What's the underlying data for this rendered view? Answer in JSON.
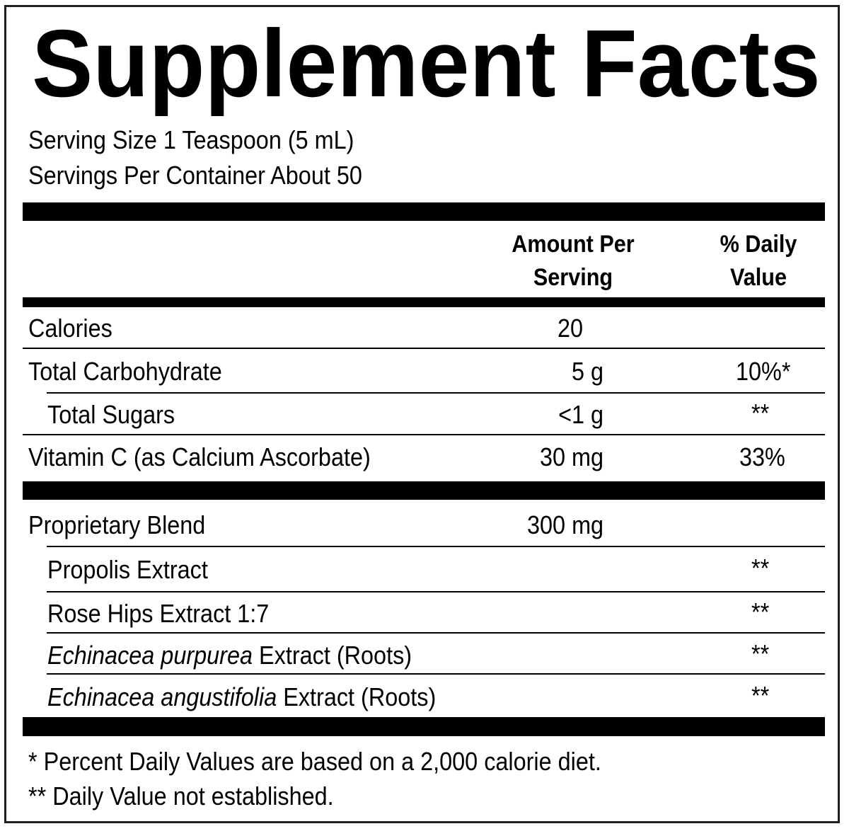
{
  "title": "Supplement Facts",
  "serving_size": "Serving Size 1 Teaspoon (5 mL)",
  "servings_per_container": "Servings Per Container About 50",
  "header": {
    "amount_line1": "Amount Per",
    "amount_line2": "Serving",
    "dv_line1": "% Daily",
    "dv_line2": "Value"
  },
  "nutrients": [
    {
      "name": "Calories",
      "amount": "20",
      "dv": ""
    },
    {
      "name": "Total Carbohydrate",
      "amount": "5 g",
      "dv": "10%*"
    },
    {
      "name": "Total Sugars",
      "amount": "<1 g",
      "dv": "**"
    },
    {
      "name": "Vitamin C (as Calcium Ascorbate)",
      "amount": "30 mg",
      "dv": "33%"
    }
  ],
  "blend": {
    "name": "Proprietary Blend",
    "amount": "300 mg",
    "ingredients": [
      {
        "italic": "",
        "name": "Propolis Extract",
        "dv": "**"
      },
      {
        "italic": "",
        "name": "Rose Hips Extract 1:7",
        "dv": "**"
      },
      {
        "italic": "Echinacea purpurea",
        "name": " Extract (Roots)",
        "dv": "**"
      },
      {
        "italic": "Echinacea angustifolia",
        "name": " Extract (Roots)",
        "dv": "**"
      }
    ]
  },
  "footnotes": [
    "* Percent Daily Values are based on a 2,000 calorie diet.",
    "** Daily Value not established."
  ]
}
